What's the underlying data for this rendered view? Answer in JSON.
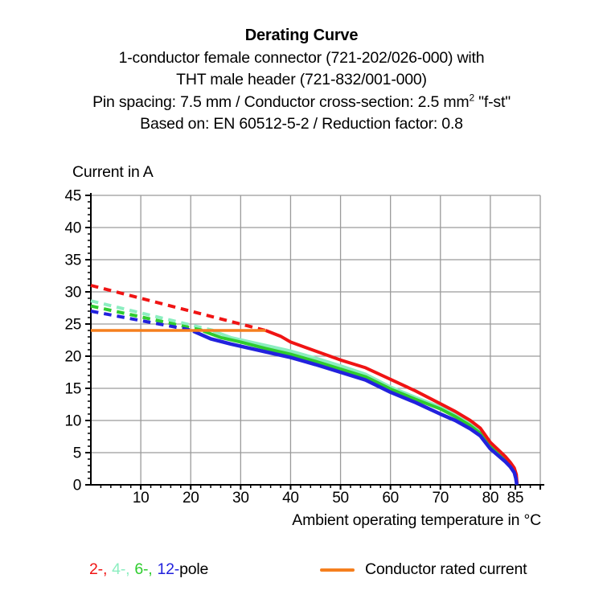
{
  "title": {
    "main": "Derating Curve",
    "line2": "1-conductor female connector (721-202/026-000) with",
    "line3": "THT male header (721-832/001-000)",
    "line4_pre": "Pin spacing: 7.5 mm / Conductor cross-section: 2.5 mm",
    "line4_sup": "2",
    "line4_post": " \"f-st\"",
    "line5": "Based on: EN 60512-5-2 / Reduction factor: 0.8"
  },
  "legend": {
    "pole_items": [
      {
        "label": "2-,",
        "color": "#f01414"
      },
      {
        "label": "4-,",
        "color": "#8ceec0"
      },
      {
        "label": "6-,",
        "color": "#2ecc2e"
      },
      {
        "label": "12-",
        "color": "#2222dd"
      }
    ],
    "pole_suffix": "pole",
    "rated_current_label": "Conductor rated current",
    "rated_current_color": "#f57f1e"
  },
  "chart_data": {
    "type": "line",
    "title": "Derating Curve",
    "xlabel": "Ambient operating temperature in °C",
    "ylabel": "Current in A",
    "xlim": [
      0,
      90
    ],
    "ylim": [
      0,
      45
    ],
    "grid": true,
    "grid_color": "#9a9a9a",
    "axis_color": "#000000",
    "x_gridlines": [
      10,
      20,
      30,
      40,
      50,
      60,
      70,
      80,
      90
    ],
    "y_gridlines": [
      5,
      10,
      15,
      20,
      25,
      30,
      35,
      40,
      45
    ],
    "x_major_ticks": [
      10,
      20,
      30,
      40,
      50,
      60,
      70,
      80,
      85
    ],
    "y_major_ticks": [
      0,
      5,
      10,
      15,
      20,
      25,
      30,
      35,
      40,
      45
    ],
    "x_minor_step": 2,
    "y_minor_step": 1,
    "rated_current_a": 24,
    "series": [
      {
        "id": "2pole-dashed",
        "name": "2-pole (above conductor rated current)",
        "color": "#f01414",
        "style": "dashed",
        "width": 4,
        "points": [
          [
            0,
            31
          ],
          [
            35,
            24
          ]
        ]
      },
      {
        "id": "4pole-dashed",
        "name": "4-pole (above conductor rated current)",
        "color": "#8ceec0",
        "style": "dashed",
        "width": 4,
        "points": [
          [
            0,
            28.6
          ],
          [
            24.5,
            24
          ]
        ]
      },
      {
        "id": "6pole-dashed",
        "name": "6-pole (above conductor rated current)",
        "color": "#2ecc2e",
        "style": "dashed",
        "width": 4,
        "points": [
          [
            0,
            27.8
          ],
          [
            22.5,
            24
          ]
        ]
      },
      {
        "id": "12pole-dashed",
        "name": "12-pole (above conductor rated current)",
        "color": "#2222dd",
        "style": "dashed",
        "width": 4,
        "points": [
          [
            0,
            27.0
          ],
          [
            20.5,
            24
          ]
        ]
      },
      {
        "id": "4pole",
        "name": "4-pole",
        "color": "#8ceec0",
        "style": "solid",
        "width": 4,
        "points": [
          [
            24.5,
            23.9
          ],
          [
            28,
            22.9
          ],
          [
            32,
            22.2
          ],
          [
            36,
            21.5
          ],
          [
            40,
            20.8
          ],
          [
            45,
            19.7
          ],
          [
            50,
            18.5
          ],
          [
            55,
            17.2
          ],
          [
            60,
            15.2
          ],
          [
            65,
            13.6
          ],
          [
            70,
            12.1
          ],
          [
            73,
            10.9
          ],
          [
            76,
            9.5
          ],
          [
            78,
            8.3
          ],
          [
            80,
            6.3
          ],
          [
            81.5,
            5.2
          ],
          [
            83,
            4.1
          ],
          [
            84,
            3.2
          ],
          [
            84.8,
            2.3
          ],
          [
            85.15,
            1.4
          ],
          [
            85.3,
            0.2
          ]
        ]
      },
      {
        "id": "6pole",
        "name": "6-pole",
        "color": "#2ecc2e",
        "style": "solid",
        "width": 4,
        "points": [
          [
            22.5,
            23.9
          ],
          [
            26,
            22.9
          ],
          [
            30,
            22.2
          ],
          [
            35,
            21.2
          ],
          [
            40,
            20.3
          ],
          [
            45,
            19.2
          ],
          [
            50,
            18.0
          ],
          [
            55,
            16.8
          ],
          [
            60,
            14.9
          ],
          [
            65,
            13.3
          ],
          [
            70,
            11.8
          ],
          [
            73,
            10.6
          ],
          [
            76,
            9.2
          ],
          [
            78,
            8.0
          ],
          [
            80,
            6.1
          ],
          [
            81.5,
            5.0
          ],
          [
            83,
            3.9
          ],
          [
            84,
            3.0
          ],
          [
            84.8,
            2.1
          ],
          [
            85.1,
            1.2
          ],
          [
            85.3,
            0.2
          ]
        ]
      },
      {
        "id": "2pole",
        "name": "2-pole",
        "color": "#f01414",
        "style": "solid",
        "width": 4,
        "points": [
          [
            35,
            24
          ],
          [
            38,
            23.1
          ],
          [
            40,
            22.2
          ],
          [
            45,
            20.8
          ],
          [
            50,
            19.4
          ],
          [
            55,
            18.2
          ],
          [
            60,
            16.4
          ],
          [
            65,
            14.6
          ],
          [
            70,
            12.6
          ],
          [
            73,
            11.4
          ],
          [
            76,
            10.0
          ],
          [
            78,
            8.8
          ],
          [
            80,
            6.6
          ],
          [
            81.5,
            5.5
          ],
          [
            83,
            4.4
          ],
          [
            84,
            3.5
          ],
          [
            84.8,
            2.6
          ],
          [
            85.2,
            1.6
          ],
          [
            85.35,
            0.2
          ]
        ]
      },
      {
        "id": "12pole",
        "name": "12-pole",
        "color": "#2222dd",
        "style": "solid",
        "width": 4.5,
        "points": [
          [
            20.5,
            23.9
          ],
          [
            24,
            22.7
          ],
          [
            28,
            21.9
          ],
          [
            32,
            21.2
          ],
          [
            36,
            20.5
          ],
          [
            40,
            19.8
          ],
          [
            45,
            18.7
          ],
          [
            50,
            17.5
          ],
          [
            55,
            16.3
          ],
          [
            60,
            14.4
          ],
          [
            65,
            12.8
          ],
          [
            70,
            11.0
          ],
          [
            73,
            10.0
          ],
          [
            76,
            8.7
          ],
          [
            78,
            7.6
          ],
          [
            80,
            5.6
          ],
          [
            81.5,
            4.6
          ],
          [
            83,
            3.6
          ],
          [
            84,
            2.8
          ],
          [
            84.8,
            1.9
          ],
          [
            85.1,
            1.0
          ],
          [
            85.3,
            0
          ]
        ]
      },
      {
        "id": "conductor-rated-current",
        "name": "Conductor rated current",
        "color": "#f57f1e",
        "style": "solid",
        "width": 3.5,
        "points": [
          [
            0,
            24
          ],
          [
            35,
            24
          ]
        ]
      }
    ]
  }
}
